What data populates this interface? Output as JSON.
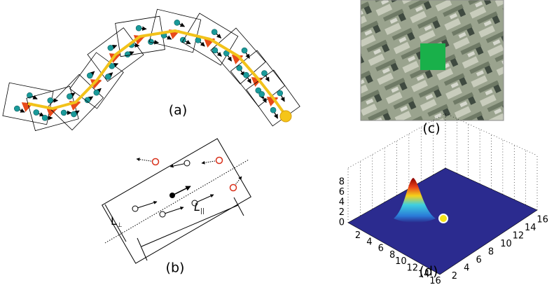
{
  "panels": {
    "a": {
      "label": "(a)"
    },
    "b": {
      "label": "(b)",
      "l_perp": "L",
      "l_perp_sub": "⊥",
      "l_par": "L",
      "l_par_sub": "||"
    },
    "c": {
      "label": "(c)"
    },
    "d": {
      "label": "(d)",
      "z_ticks": [
        0,
        2,
        4,
        6,
        8
      ],
      "x_ticks": [
        2,
        4,
        6,
        8,
        10,
        12,
        14,
        16
      ],
      "y_ticks": [
        2,
        4,
        6,
        8,
        10,
        12,
        14,
        16
      ]
    }
  }
}
